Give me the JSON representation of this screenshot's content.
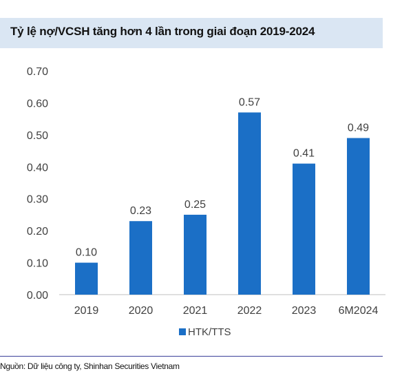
{
  "title": "Tỷ lệ nợ/VCSH tăng hơn 4 lần trong giai đoạn 2019-2024",
  "source": "Nguồn: Dữ liệu công ty, Shinhan Securities Vietnam",
  "colors": {
    "bar": "#1b6fc6",
    "title_bg": "#dae6f3",
    "rule": "#3a3f9a",
    "text": "#404040"
  },
  "chart_data": {
    "type": "bar",
    "categories": [
      "2019",
      "2020",
      "2021",
      "2022",
      "2023",
      "6M2024"
    ],
    "series": [
      {
        "name": "HTK/TTS",
        "values": [
          0.1,
          0.23,
          0.25,
          0.57,
          0.41,
          0.49
        ],
        "labels": [
          "0.10",
          "0.23",
          "0.25",
          "0.57",
          "0.41",
          "0.49"
        ]
      }
    ],
    "yticks": [
      "0.00",
      "0.10",
      "0.20",
      "0.30",
      "0.40",
      "0.50",
      "0.60",
      "0.70"
    ],
    "ylim": [
      0,
      0.7
    ],
    "grid": false,
    "legend": "bottom"
  }
}
